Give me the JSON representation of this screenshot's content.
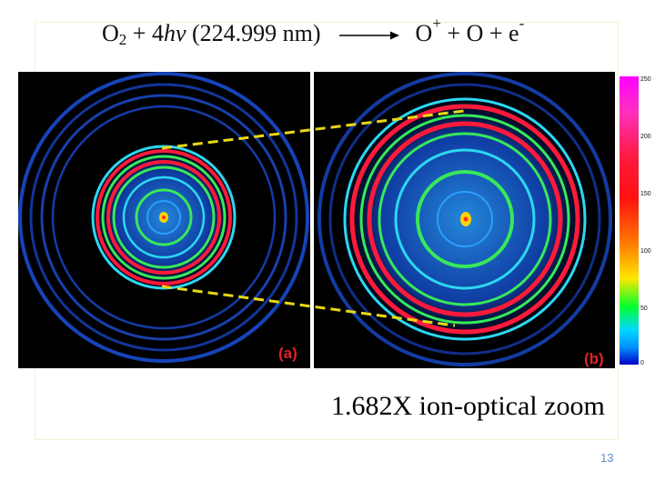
{
  "slide": {
    "equation": {
      "reactant": "O",
      "reactant_subscript": "2",
      "plus_photons": " + 4",
      "photon_symbol": "hv",
      "wavelength": " (224.999 nm)",
      "product_ion": "O",
      "product_ion_charge": "+",
      "products_rest": " + O + e",
      "electron_charge": "-"
    },
    "panel_a_label": "(a)",
    "panel_b_label": "(b)",
    "colorbar_ticks": [
      "250",
      "200",
      "150",
      "100",
      "50",
      "0"
    ],
    "zoom_caption": "1.682X ion-optical zoom",
    "page_number": "13",
    "colors": {
      "ring_red": "#ff1a3c",
      "ring_green": "#38e85a",
      "ring_cyan": "#2cd8f0",
      "ring_blue": "#1d5cff",
      "connector_yellow": "#e8d814",
      "label_red": "#e02424",
      "page_number_blue": "#5b8fd6"
    }
  }
}
